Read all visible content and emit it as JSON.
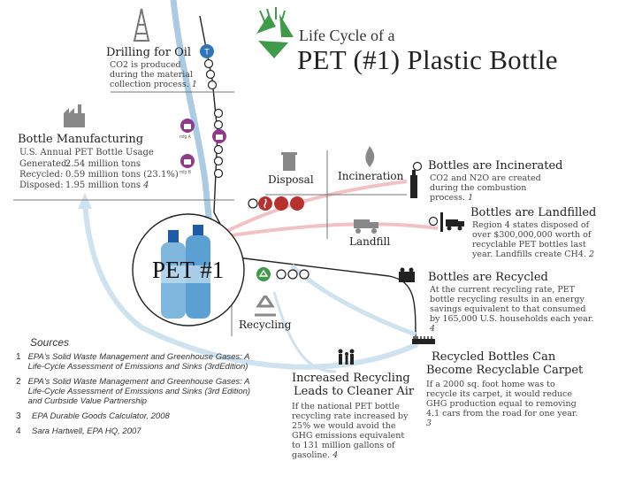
{
  "title": {
    "line1": "Life Cycle of a",
    "line2": "PET (#1) Plastic Bottle"
  },
  "drilling": {
    "heading": "Drilling for Oil",
    "text": "CO2 is produced during the material collection process.",
    "note": "1"
  },
  "manufacturing": {
    "heading": "Bottle Manufacturing",
    "subheading": "U.S. Annual PET Bottle Usage",
    "rows": [
      {
        "label": "Generated:",
        "value": "2.54 million tons"
      },
      {
        "label": "Recycled:",
        "value": "0.59 million tons (23.1%)"
      },
      {
        "label": "Disposed:",
        "value": "1.95 million tons",
        "note": "4"
      }
    ],
    "icon_label_a": "mfg A",
    "icon_label_b": "mfg B"
  },
  "center_label": "PET #1",
  "disposal_label": "Disposal",
  "incineration_label": "Incineration",
  "landfill_label": "Landfill",
  "recycling_label": "Recycling",
  "incinerated": {
    "heading": "Bottles are Incinerated",
    "text": "CO2 and N2O are created during the combustion process.",
    "note": "1"
  },
  "landfilled": {
    "heading": "Bottles are Landfilled",
    "text": "Region 4 states disposed of over $300,000,000 worth of recyclable PET bottles last year.  Landfills create CH4.",
    "note": "2"
  },
  "recycled": {
    "heading": "Bottles are Recycled",
    "text": "At the current recycling rate, PET bottle recycling results in an energy savings equivalent to that consumed by 165,000 U.S. households each year.",
    "note": "4"
  },
  "carpet": {
    "heading_line1": "Recycled Bottles Can",
    "heading_line2": "Become Recyclable Carpet",
    "text": "If a 2000 sq. foot home was to recycle its carpet, it would reduce GHG production equal to removing 4.1 cars from the road for one year.",
    "note": "3"
  },
  "cleaner_air": {
    "heading_line1": "Increased Recycling",
    "heading_line2": "Leads to Cleaner Air",
    "text": "If the national PET bottle recycling rate increased by 25% we would avoid the GHG emissions equivalent to 131 million gallons of gasoline.",
    "note": "4"
  },
  "sources": {
    "heading": "Sources",
    "items": [
      {
        "num": "1",
        "text": "EPA's Solid Waste Management and Greenhouse Gases: A Life-Cycle Assessment of Emissions and Sinks (3rdEdition)"
      },
      {
        "num": "2",
        "text": "EPA's Solid Waste Management and Greenhouse Gases: A Life-Cycle Assessment of Emissions and Sinks (3rd Edition)  and Curbside Value Partnership"
      },
      {
        "num": "3",
        "text": "EPA Durable Goods Calculator, 2008"
      },
      {
        "num": "4",
        "text": "Sara Hartwell, EPA HQ, 2007"
      }
    ]
  },
  "colors": {
    "flow_blue": "#a9cbe3",
    "flow_pink": "#f3c0c4",
    "accent_purple": "#8e3c8a",
    "accent_green": "#3f9a4a",
    "accent_red": "#b7312f",
    "accent_blue": "#2f76b8"
  }
}
